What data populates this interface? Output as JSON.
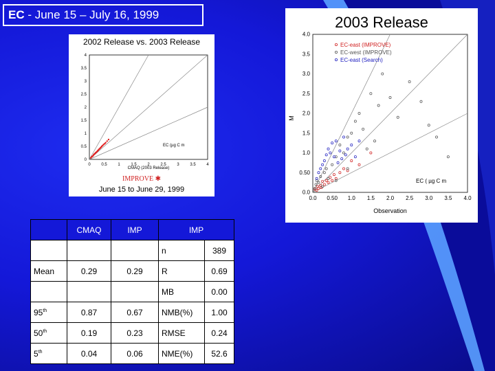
{
  "slide": {
    "title_prefix": "EC",
    "title_rest": " - June 15 –  July 16, 1999"
  },
  "left_chart": {
    "title": "2002 Release vs. 2003 Release",
    "improve_label": "IMPROVE",
    "subtitle": "June 15  to  June 29,  1999",
    "ec_label": "EC (µg C m",
    "xlabel": "CMAQ (2003 Release)"
  },
  "right_chart": {
    "title": "2003 Release",
    "xlabel": "Observation",
    "ylabel": "M",
    "ec_label": "EC ( µg C m"
  },
  "table": {
    "headers": [
      "",
      "CMAQ",
      "IMP",
      "IMP"
    ],
    "rows": [
      {
        "label": "",
        "sup": "",
        "cmaq": "",
        "imp": "",
        "stat": "n",
        "val": "389"
      },
      {
        "label": "Mean",
        "sup": "",
        "cmaq": "0.29",
        "imp": "0.29",
        "stat": "R",
        "val": "0.69"
      },
      {
        "label": "",
        "sup": "",
        "cmaq": "",
        "imp": "",
        "stat": "MB",
        "val": "0.00"
      },
      {
        "label": "95",
        "sup": "th",
        "cmaq": "0.87",
        "imp": "0.67",
        "stat": "NMB(%)",
        "val": "1.00"
      },
      {
        "label": "50",
        "sup": "th",
        "cmaq": "0.19",
        "imp": "0.23",
        "stat": "RMSE",
        "val": "0.24"
      },
      {
        "label": "5",
        "sup": "th",
        "cmaq": "0.04",
        "imp": "0.06",
        "stat": "NME(%)",
        "val": "52.6"
      }
    ]
  },
  "chart_data": [
    {
      "type": "scatter",
      "title": "2002 Release vs. 2003 Release",
      "xlabel": "CMAQ (2003 Release)",
      "ylabel": "",
      "xlim": [
        0,
        4
      ],
      "ylim": [
        0,
        4
      ],
      "x_ticks": [
        "0",
        "0.5",
        "1",
        "1.5",
        "2",
        "2.5",
        "3",
        "3.5",
        "4"
      ],
      "y_ticks": [
        "0",
        "0.5",
        "1",
        "1.5",
        "2",
        "2.5",
        "3",
        "3.5",
        "4"
      ],
      "color": "#e02020",
      "reference_slopes": [
        2,
        1,
        0.5
      ],
      "points": [
        [
          0.05,
          0.06
        ],
        [
          0.08,
          0.1
        ],
        [
          0.1,
          0.12
        ],
        [
          0.12,
          0.13
        ],
        [
          0.14,
          0.17
        ],
        [
          0.16,
          0.2
        ],
        [
          0.18,
          0.21
        ],
        [
          0.2,
          0.24
        ],
        [
          0.22,
          0.26
        ],
        [
          0.24,
          0.28
        ],
        [
          0.26,
          0.3
        ],
        [
          0.28,
          0.33
        ],
        [
          0.3,
          0.35
        ],
        [
          0.32,
          0.38
        ],
        [
          0.34,
          0.4
        ],
        [
          0.36,
          0.42
        ],
        [
          0.38,
          0.45
        ],
        [
          0.4,
          0.47
        ],
        [
          0.42,
          0.5
        ],
        [
          0.45,
          0.53
        ],
        [
          0.48,
          0.57
        ],
        [
          0.52,
          0.6
        ],
        [
          0.55,
          0.64
        ],
        [
          0.6,
          0.7
        ],
        [
          0.65,
          0.76
        ]
      ]
    },
    {
      "type": "scatter",
      "title": "2003 Release",
      "xlabel": "Observation",
      "ylabel": "M",
      "xlim": [
        0,
        4
      ],
      "ylim": [
        0,
        4
      ],
      "x_ticks": [
        "0.0",
        "0.50",
        "1.0",
        "1.5",
        "2.0",
        "2.5",
        "3.0",
        "3.5",
        "4.0"
      ],
      "y_ticks": [
        "0.0",
        "0.50",
        "1.0",
        "1.5",
        "2.0",
        "2.5",
        "3.0",
        "3.5",
        "4.0"
      ],
      "legend_position": "top-right",
      "reference_slopes": [
        2,
        1,
        0.5
      ],
      "series": [
        {
          "name": "EC-east (IMPROVE)",
          "color": "#d02020",
          "points": [
            [
              0.05,
              0.08
            ],
            [
              0.1,
              0.05
            ],
            [
              0.12,
              0.15
            ],
            [
              0.15,
              0.1
            ],
            [
              0.2,
              0.18
            ],
            [
              0.22,
              0.12
            ],
            [
              0.25,
              0.28
            ],
            [
              0.3,
              0.2
            ],
            [
              0.35,
              0.3
            ],
            [
              0.4,
              0.25
            ],
            [
              0.45,
              0.38
            ],
            [
              0.5,
              0.3
            ],
            [
              0.55,
              0.45
            ],
            [
              0.6,
              0.35
            ],
            [
              0.7,
              0.5
            ],
            [
              0.8,
              0.6
            ],
            [
              0.9,
              0.55
            ],
            [
              1.0,
              0.8
            ],
            [
              1.2,
              0.7
            ],
            [
              1.5,
              1.0
            ]
          ]
        },
        {
          "name": "EC-west (IMPROVE)",
          "color": "#555555",
          "points": [
            [
              0.05,
              0.1
            ],
            [
              0.08,
              0.2
            ],
            [
              0.1,
              0.3
            ],
            [
              0.15,
              0.25
            ],
            [
              0.2,
              0.4
            ],
            [
              0.25,
              0.15
            ],
            [
              0.3,
              0.5
            ],
            [
              0.35,
              0.6
            ],
            [
              0.4,
              0.35
            ],
            [
              0.5,
              0.7
            ],
            [
              0.6,
              0.9
            ],
            [
              0.7,
              1.2
            ],
            [
              0.8,
              1.0
            ],
            [
              0.9,
              1.4
            ],
            [
              1.0,
              1.5
            ],
            [
              1.1,
              1.8
            ],
            [
              1.2,
              2.0
            ],
            [
              1.3,
              1.6
            ],
            [
              1.5,
              2.5
            ],
            [
              1.7,
              2.2
            ],
            [
              1.8,
              3.0
            ],
            [
              2.0,
              2.4
            ],
            [
              2.2,
              1.9
            ],
            [
              2.5,
              2.8
            ],
            [
              2.8,
              2.3
            ],
            [
              3.0,
              1.7
            ],
            [
              3.2,
              1.4
            ],
            [
              3.5,
              0.9
            ],
            [
              0.6,
              0.3
            ],
            [
              0.9,
              0.6
            ],
            [
              1.4,
              1.1
            ],
            [
              1.6,
              1.3
            ]
          ]
        },
        {
          "name": "EC-east (Search)",
          "color": "#2020c0",
          "points": [
            [
              0.1,
              0.35
            ],
            [
              0.15,
              0.5
            ],
            [
              0.2,
              0.6
            ],
            [
              0.25,
              0.7
            ],
            [
              0.3,
              0.8
            ],
            [
              0.35,
              0.95
            ],
            [
              0.4,
              1.1
            ],
            [
              0.45,
              1.0
            ],
            [
              0.5,
              1.25
            ],
            [
              0.55,
              0.9
            ],
            [
              0.6,
              1.3
            ],
            [
              0.65,
              0.75
            ],
            [
              0.7,
              1.05
            ],
            [
              0.75,
              0.85
            ],
            [
              0.8,
              1.4
            ],
            [
              0.85,
              0.95
            ],
            [
              0.9,
              1.1
            ],
            [
              1.0,
              1.2
            ],
            [
              1.1,
              0.9
            ],
            [
              1.2,
              1.3
            ]
          ]
        }
      ]
    }
  ]
}
